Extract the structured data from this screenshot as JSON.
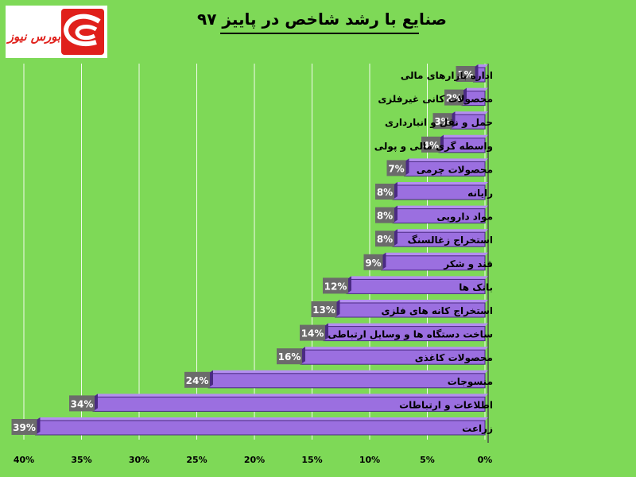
{
  "chart_data": {
    "type": "bar",
    "orientation": "horizontal",
    "title": "صنایع با رشد شاخص در پاییز ۹۷",
    "categories": [
      "اداره بازارهای مالی",
      "محصولات کانی غیرفلزی",
      "حمل و نقل و انبارداری",
      "واسطه گری مالی و پولی",
      "محصولات چرمی",
      "رایانه",
      "مواد دارویی",
      "استخراج زغالسنگ",
      "قند و شکر",
      "بانک ها",
      "استخراج کانه های فلزی",
      "ساخت دستگاه ها و وسایل ارتباطی",
      "محصولات کاغذی",
      "منسوجات",
      "اطلاعات و ارتباطات",
      "زراعت"
    ],
    "values": [
      1,
      2,
      3,
      4,
      7,
      8,
      8,
      8,
      9,
      12,
      13,
      14,
      16,
      24,
      34,
      39
    ],
    "value_labels": [
      "1%",
      "2%",
      "3%",
      "4%",
      "7%",
      "8%",
      "8%",
      "8%",
      "9%",
      "12%",
      "13%",
      "14%",
      "16%",
      "24%",
      "34%",
      "39%"
    ],
    "x_ticks": [
      40,
      35,
      30,
      25,
      20,
      15,
      10,
      5,
      0
    ],
    "x_tick_labels": [
      "40%",
      "35%",
      "30%",
      "25%",
      "20%",
      "15%",
      "10%",
      "5%",
      "0%"
    ],
    "xlim": [
      0,
      40
    ],
    "x_axis_direction": "reversed",
    "grid": true,
    "colors": {
      "background": "#7ed957",
      "bar": "#9b6fe0",
      "bar_top": "#b48ff0",
      "bar_dark": "#4a2a82",
      "label_box": "#6b6b6b",
      "grid": "#ffffff"
    }
  },
  "logo": {
    "text": "بورس نیوز",
    "icon": "bourse-news-logo",
    "color": "#e0201b"
  }
}
